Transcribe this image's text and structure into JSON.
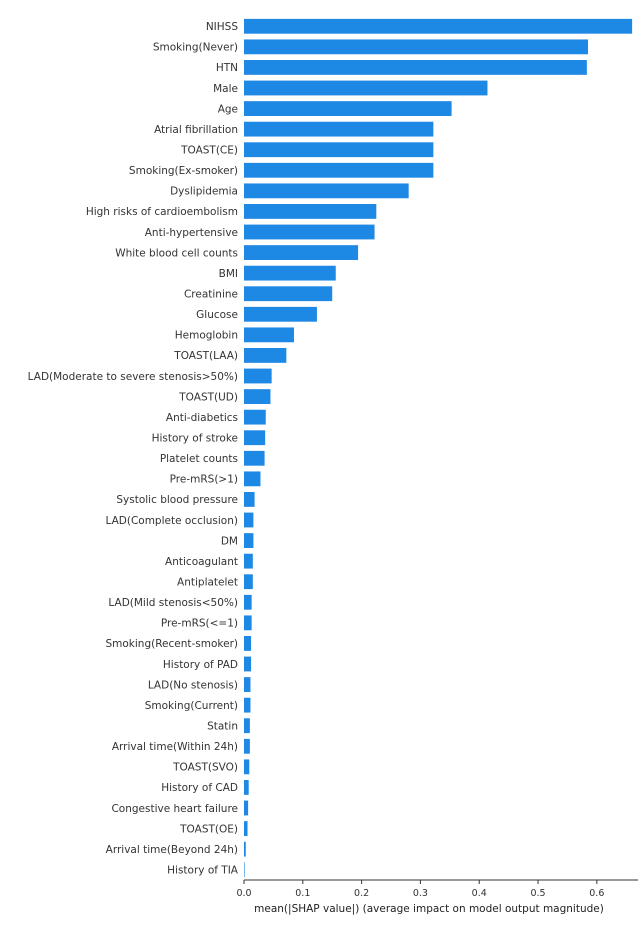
{
  "chart_data": {
    "type": "bar",
    "orientation": "horizontal",
    "title": "",
    "xlabel": "mean(|SHAP value|) (average impact on model output magnitude)",
    "ylabel": "",
    "xlim": [
      0,
      0.67
    ],
    "xticks": [
      "0.0",
      "0.1",
      "0.2",
      "0.3",
      "0.4",
      "0.5",
      "0.6"
    ],
    "bar_color": "#1e88e5",
    "grid": false,
    "categories": [
      "NIHSS",
      "Smoking(Never)",
      "HTN",
      "Male",
      "Age",
      "Atrial fibrillation",
      "TOAST(CE)",
      "Smoking(Ex-smoker)",
      "Dyslipidemia",
      "High risks of cardioembolism",
      "Anti-hypertensive",
      "White blood cell counts",
      "BMI",
      "Creatinine",
      "Glucose",
      "Hemoglobin",
      "TOAST(LAA)",
      "LAD(Moderate to severe stenosis>50%)",
      "TOAST(UD)",
      "Anti-diabetics",
      "History of stroke",
      "Platelet counts",
      "Pre-mRS(>1)",
      "Systolic blood pressure",
      "LAD(Complete occlusion)",
      "DM",
      "Anticoagulant",
      "Antiplatelet",
      "LAD(Mild stenosis<50%)",
      "Pre-mRS(<=1)",
      "Smoking(Recent-smoker)",
      "History of PAD",
      "LAD(No stenosis)",
      "Smoking(Current)",
      "Statin",
      "Arrival time(Within 24h)",
      "TOAST(SVO)",
      "History of CAD",
      "Congestive heart failure",
      "TOAST(OE)",
      "Arrival time(Beyond 24h)",
      "History of TIA"
    ],
    "values": [
      0.66,
      0.585,
      0.583,
      0.414,
      0.353,
      0.322,
      0.322,
      0.322,
      0.28,
      0.225,
      0.222,
      0.194,
      0.156,
      0.15,
      0.124,
      0.085,
      0.072,
      0.047,
      0.045,
      0.037,
      0.036,
      0.035,
      0.028,
      0.018,
      0.016,
      0.016,
      0.015,
      0.015,
      0.013,
      0.013,
      0.012,
      0.012,
      0.011,
      0.011,
      0.01,
      0.01,
      0.009,
      0.008,
      0.007,
      0.006,
      0.003,
      0.001
    ]
  }
}
